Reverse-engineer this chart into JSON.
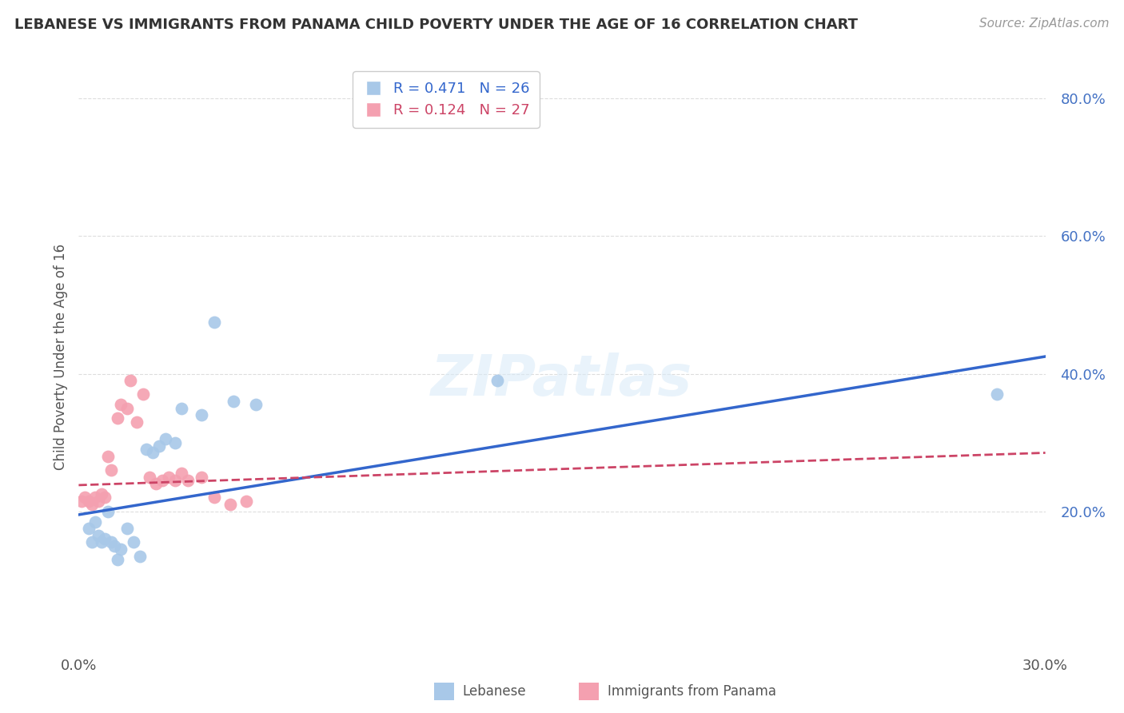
{
  "title": "LEBANESE VS IMMIGRANTS FROM PANAMA CHILD POVERTY UNDER THE AGE OF 16 CORRELATION CHART",
  "source": "Source: ZipAtlas.com",
  "ylabel": "Child Poverty Under the Age of 16",
  "R1": 0.471,
  "N1": 26,
  "R2": 0.124,
  "N2": 27,
  "color1": "#a8c8e8",
  "color2": "#f4a0b0",
  "line_color1": "#3366cc",
  "line_color2": "#cc4466",
  "xlim": [
    0.0,
    0.3
  ],
  "ylim": [
    0.0,
    0.85
  ],
  "yticks": [
    0.2,
    0.4,
    0.6,
    0.8
  ],
  "xtick_labels_show": [
    0.0,
    0.3
  ],
  "legend_label1": "Lebanese",
  "legend_label2": "Immigrants from Panama",
  "watermark": "ZIPatlas",
  "background_color": "#ffffff",
  "grid_color": "#dddddd",
  "scatter_blue_x": [
    0.003,
    0.004,
    0.005,
    0.006,
    0.007,
    0.008,
    0.009,
    0.01,
    0.011,
    0.012,
    0.013,
    0.015,
    0.017,
    0.019,
    0.021,
    0.023,
    0.025,
    0.027,
    0.03,
    0.032,
    0.038,
    0.042,
    0.048,
    0.055,
    0.13,
    0.285
  ],
  "scatter_blue_y": [
    0.175,
    0.155,
    0.185,
    0.165,
    0.155,
    0.16,
    0.2,
    0.155,
    0.15,
    0.13,
    0.145,
    0.175,
    0.155,
    0.135,
    0.29,
    0.285,
    0.295,
    0.305,
    0.3,
    0.35,
    0.34,
    0.475,
    0.36,
    0.355,
    0.39,
    0.37
  ],
  "scatter_pink_x": [
    0.001,
    0.002,
    0.003,
    0.004,
    0.005,
    0.006,
    0.007,
    0.008,
    0.009,
    0.01,
    0.012,
    0.013,
    0.015,
    0.016,
    0.018,
    0.02,
    0.022,
    0.024,
    0.026,
    0.028,
    0.03,
    0.032,
    0.034,
    0.038,
    0.042,
    0.047,
    0.052
  ],
  "scatter_pink_y": [
    0.215,
    0.22,
    0.215,
    0.21,
    0.22,
    0.215,
    0.225,
    0.22,
    0.28,
    0.26,
    0.335,
    0.355,
    0.35,
    0.39,
    0.33,
    0.37,
    0.25,
    0.24,
    0.245,
    0.25,
    0.245,
    0.255,
    0.245,
    0.25,
    0.22,
    0.21,
    0.215
  ],
  "trendline_blue_x0": 0.0,
  "trendline_blue_y0": 0.195,
  "trendline_blue_x1": 0.3,
  "trendline_blue_y1": 0.425,
  "trendline_pink_x0": 0.0,
  "trendline_pink_y0": 0.238,
  "trendline_pink_x1": 0.3,
  "trendline_pink_y1": 0.285
}
